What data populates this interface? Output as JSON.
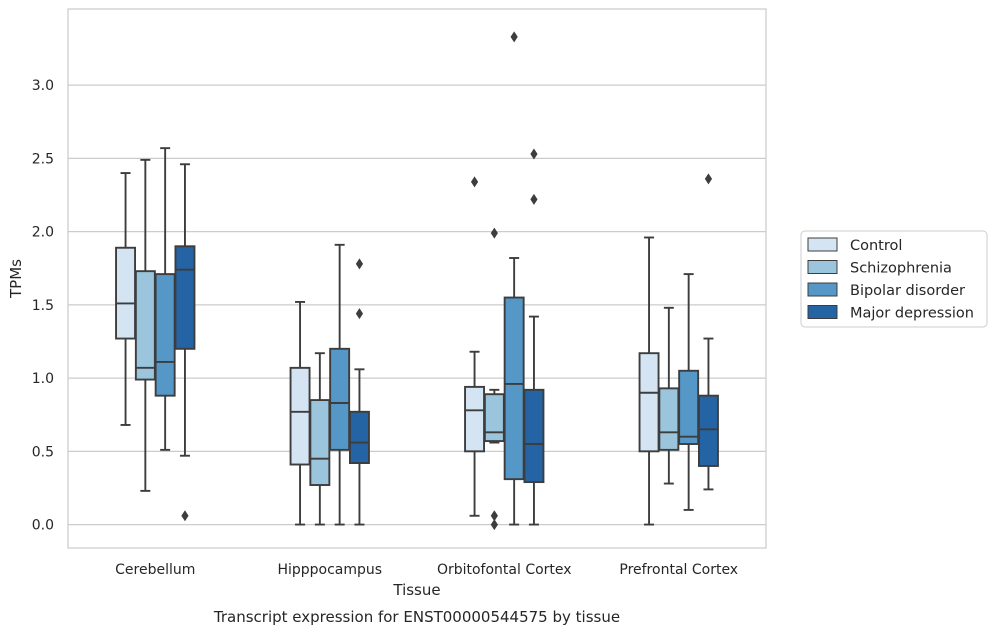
{
  "chart_data": {
    "type": "box",
    "xlabel": "Tissue",
    "ylabel": "TPMs",
    "caption": "Transcript expression for ENST00000544575 by tissue",
    "ylim": [
      -0.16,
      3.52
    ],
    "yticks": [
      0.0,
      0.5,
      1.0,
      1.5,
      2.0,
      2.5,
      3.0
    ],
    "ytick_labels": [
      "0.0",
      "0.5",
      "1.0",
      "1.5",
      "2.0",
      "2.5",
      "3.0"
    ],
    "grid": "horizontal",
    "legend_position": "right",
    "categories": [
      "Cerebellum",
      "Hipppocampus",
      "Orbitofontal Cortex",
      "Prefrontal Cortex"
    ],
    "series": [
      {
        "name": "Control",
        "color": "#d5e4f3",
        "boxes": [
          {
            "whislo": 0.68,
            "q1": 1.27,
            "med": 1.51,
            "q3": 1.89,
            "whishi": 2.4,
            "fliers": []
          },
          {
            "whislo": 0.0,
            "q1": 0.41,
            "med": 0.77,
            "q3": 1.07,
            "whishi": 1.52,
            "fliers": []
          },
          {
            "whislo": 0.06,
            "q1": 0.5,
            "med": 0.78,
            "q3": 0.94,
            "whishi": 1.18,
            "fliers": [
              2.34
            ]
          },
          {
            "whislo": 0.0,
            "q1": 0.5,
            "med": 0.9,
            "q3": 1.17,
            "whishi": 1.96,
            "fliers": []
          }
        ]
      },
      {
        "name": "Schizophrenia",
        "color": "#9ac5dc",
        "boxes": [
          {
            "whislo": 0.23,
            "q1": 0.99,
            "med": 1.07,
            "q3": 1.73,
            "whishi": 2.49,
            "fliers": []
          },
          {
            "whislo": 0.0,
            "q1": 0.27,
            "med": 0.45,
            "q3": 0.85,
            "whishi": 1.17,
            "fliers": []
          },
          {
            "whislo": 0.56,
            "q1": 0.57,
            "med": 0.63,
            "q3": 0.89,
            "whishi": 0.92,
            "fliers": [
              1.99,
              0.06,
              0.0
            ]
          },
          {
            "whislo": 0.28,
            "q1": 0.51,
            "med": 0.63,
            "q3": 0.93,
            "whishi": 1.48,
            "fliers": []
          }
        ]
      },
      {
        "name": "Bipolar disorder",
        "color": "#5597c6",
        "boxes": [
          {
            "whislo": 0.51,
            "q1": 0.88,
            "med": 1.11,
            "q3": 1.71,
            "whishi": 2.57,
            "fliers": []
          },
          {
            "whislo": 0.0,
            "q1": 0.51,
            "med": 0.83,
            "q3": 1.2,
            "whishi": 1.91,
            "fliers": []
          },
          {
            "whislo": 0.0,
            "q1": 0.31,
            "med": 0.96,
            "q3": 1.55,
            "whishi": 1.82,
            "fliers": [
              3.33
            ]
          },
          {
            "whislo": 0.1,
            "q1": 0.55,
            "med": 0.6,
            "q3": 1.05,
            "whishi": 1.71,
            "fliers": []
          }
        ]
      },
      {
        "name": "Major depression",
        "color": "#2464a5",
        "boxes": [
          {
            "whislo": 0.47,
            "q1": 1.2,
            "med": 1.74,
            "q3": 1.9,
            "whishi": 2.46,
            "fliers": [
              0.06
            ]
          },
          {
            "whislo": 0.0,
            "q1": 0.42,
            "med": 0.56,
            "q3": 0.77,
            "whishi": 1.06,
            "fliers": [
              1.78,
              1.44
            ]
          },
          {
            "whislo": 0.0,
            "q1": 0.29,
            "med": 0.55,
            "q3": 0.92,
            "whishi": 1.42,
            "fliers": [
              2.53,
              2.22
            ]
          },
          {
            "whislo": 0.24,
            "q1": 0.4,
            "med": 0.65,
            "q3": 0.88,
            "whishi": 1.27,
            "fliers": [
              2.36
            ]
          }
        ]
      }
    ]
  }
}
